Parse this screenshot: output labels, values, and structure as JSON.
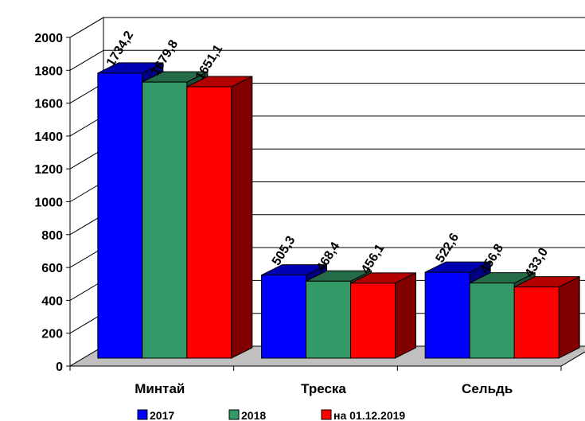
{
  "chart_data": {
    "type": "bar",
    "categories": [
      "Минтай",
      "Треска",
      "Сельдь"
    ],
    "series": [
      {
        "name": "2017",
        "color": "#0000ff",
        "values": [
          1734.2,
          505.3,
          522.6
        ],
        "labels": [
          "1734,2",
          "505,3",
          "522,6"
        ]
      },
      {
        "name": "2018",
        "color": "#339966",
        "values": [
          1679.8,
          468.4,
          456.8
        ],
        "labels": [
          "1679,8",
          "468,4",
          "456,8"
        ]
      },
      {
        "name": "на 01.12.2019",
        "color": "#ff0000",
        "values": [
          1651.1,
          456.1,
          433.0
        ],
        "labels": [
          "1651,1",
          "456,1",
          "433,0"
        ]
      }
    ],
    "ylim": [
      0,
      2000
    ],
    "yticks": [
      "0",
      "200",
      "400",
      "600",
      "800",
      "1000",
      "1200",
      "1400",
      "1600",
      "1800",
      "2000"
    ],
    "grid": true,
    "legend_position": "bottom",
    "style": "3d-clustered-bar",
    "floor_color": "#c0c0c0"
  }
}
